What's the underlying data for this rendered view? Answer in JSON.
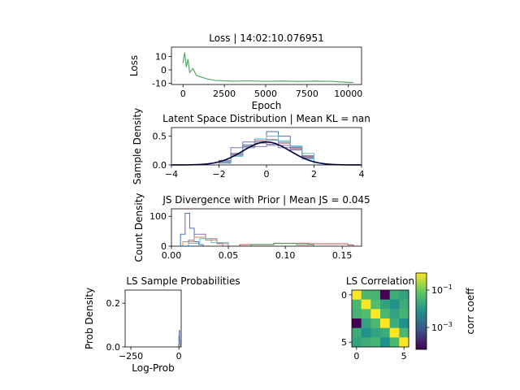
{
  "colors": {
    "loss": "#55a868",
    "series": [
      "#4c72b0",
      "#dd8452",
      "#55a868",
      "#c44e52",
      "#8172b3",
      "#64b5cd"
    ],
    "prior": "#00003c",
    "viridis": [
      "#440154",
      "#3b528b",
      "#21918c",
      "#5ec962",
      "#fde725"
    ]
  },
  "chart_data": [
    {
      "type": "line",
      "title": "Loss | 14:02:10.076951",
      "xlabel": "Epoch",
      "ylabel": "Loss",
      "xlim": [
        -700,
        10800
      ],
      "ylim": [
        -11,
        17
      ],
      "xticks": [
        0,
        2500,
        5000,
        7500,
        10000
      ],
      "yticks": [
        -10,
        0,
        10
      ],
      "series": [
        {
          "x": [
            0,
            100,
            200,
            300,
            400,
            600,
            800,
            1000,
            1500,
            2000,
            3000,
            4000,
            5000,
            6000,
            7000,
            8000,
            9000,
            10000,
            10300
          ],
          "y": [
            5,
            13,
            2,
            8,
            -2,
            1,
            -4,
            -5,
            -7,
            -8,
            -8.5,
            -8.3,
            -8.6,
            -8.4,
            -8.7,
            -8.5,
            -8.6,
            -9.5,
            -9.5
          ]
        }
      ]
    },
    {
      "type": "line",
      "title": "Latent Space Distribution | Mean KL = nan",
      "xlabel": "",
      "ylabel": "Sample Density",
      "xlim": [
        -4,
        4
      ],
      "ylim": [
        0,
        0.65
      ],
      "xticks": [
        -4,
        -2,
        0,
        2,
        4
      ],
      "yticks": [
        0.0,
        0.5
      ],
      "series": [
        {
          "x": [
            -2,
            -1.5,
            -1,
            -0.5,
            0,
            0.5,
            1,
            1.5,
            2
          ],
          "y": [
            0.05,
            0.2,
            0.35,
            0.45,
            0.58,
            0.5,
            0.3,
            0.12,
            0.02
          ]
        },
        {
          "x": [
            -2,
            -1.5,
            -1,
            -0.5,
            0,
            0.5,
            1,
            1.5,
            2
          ],
          "y": [
            0.04,
            0.18,
            0.32,
            0.42,
            0.44,
            0.38,
            0.28,
            0.14,
            0.03
          ]
        },
        {
          "x": [
            -2,
            -1.5,
            -1,
            -0.5,
            0,
            0.5,
            1,
            1.5,
            2
          ],
          "y": [
            0.06,
            0.2,
            0.3,
            0.38,
            0.36,
            0.34,
            0.3,
            0.16,
            0.05
          ]
        },
        {
          "x": [
            -2,
            -1.5,
            -1,
            -0.5,
            0,
            0.5,
            1,
            1.5,
            2
          ],
          "y": [
            0.05,
            0.16,
            0.34,
            0.4,
            0.43,
            0.4,
            0.32,
            0.1,
            0.02
          ]
        },
        {
          "x": [
            -2,
            -1.5,
            -1,
            -0.5,
            0,
            0.5,
            1,
            1.5,
            2
          ],
          "y": [
            0.08,
            0.3,
            0.4,
            0.32,
            0.34,
            0.3,
            0.26,
            0.15,
            0.04
          ]
        },
        {
          "x": [
            -2,
            -1.5,
            -1,
            -0.5,
            0,
            0.5,
            1,
            1.5,
            2
          ],
          "y": [
            0.03,
            0.15,
            0.3,
            0.45,
            0.5,
            0.42,
            0.33,
            0.2,
            0.05
          ]
        }
      ],
      "prior": {
        "mean": 0,
        "std": 1
      }
    },
    {
      "type": "line",
      "title": "JS Divergence with Prior | Mean JS = 0.045",
      "xlabel": "",
      "ylabel": "Count Density",
      "xlim": [
        0,
        0.167
      ],
      "ylim": [
        0,
        125
      ],
      "xticks": [
        0.0,
        0.05,
        0.1,
        0.15
      ],
      "yticks": [
        0,
        100
      ],
      "series": [
        {
          "x": [
            0.008,
            0.012,
            0.016,
            0.02,
            0.024,
            0.028
          ],
          "y": [
            40,
            110,
            60,
            15,
            5,
            0
          ]
        },
        {
          "x": [
            0.015,
            0.02,
            0.03,
            0.04,
            0.045
          ],
          "y": [
            20,
            40,
            25,
            10,
            0
          ]
        },
        {
          "x": [
            0.06,
            0.09,
            0.12,
            0.155,
            0.16
          ],
          "y": [
            5,
            10,
            8,
            4,
            0
          ]
        },
        {
          "x": [
            0.01,
            0.02,
            0.03,
            0.04,
            0.05
          ],
          "y": [
            15,
            30,
            20,
            8,
            0
          ]
        },
        {
          "x": [
            0.015,
            0.025,
            0.035,
            0.05
          ],
          "y": [
            10,
            25,
            12,
            0
          ]
        },
        {
          "x": [
            0.07,
            0.09,
            0.11,
            0.125
          ],
          "y": [
            6,
            9,
            5,
            0
          ]
        }
      ]
    },
    {
      "type": "line",
      "title": "LS Sample Probabilities",
      "xlabel": "Log-Prob",
      "ylabel": "Prob Density",
      "xlim": [
        -280,
        12
      ],
      "ylim": [
        0,
        0.26
      ],
      "xticks": [
        -250,
        0
      ],
      "yticks": [
        0.0,
        0.2
      ],
      "series": [
        {
          "x": [
            -2,
            0,
            2,
            4,
            6
          ],
          "y": [
            0.01,
            0.05,
            0.075,
            0.03,
            0
          ]
        }
      ]
    },
    {
      "type": "heatmap",
      "title": "LS Correlation",
      "xticks": [
        0,
        5
      ],
      "yticks": [
        0,
        5
      ],
      "colorbar": {
        "label": "corr coeff",
        "ticks": [
          "10^-1",
          "10^-3"
        ]
      },
      "values": [
        [
          1,
          0.05,
          0.04,
          0.0001,
          0.03,
          0.02
        ],
        [
          0.05,
          1,
          0.06,
          0.02,
          0.01,
          0.03
        ],
        [
          0.04,
          0.06,
          1,
          0.05,
          0.02,
          0.04
        ],
        [
          0.0001,
          0.02,
          0.05,
          1,
          0.03,
          0.01
        ],
        [
          0.03,
          0.01,
          0.02,
          0.03,
          1,
          0.05
        ],
        [
          0.02,
          0.03,
          0.04,
          0.01,
          0.05,
          1
        ]
      ]
    }
  ]
}
